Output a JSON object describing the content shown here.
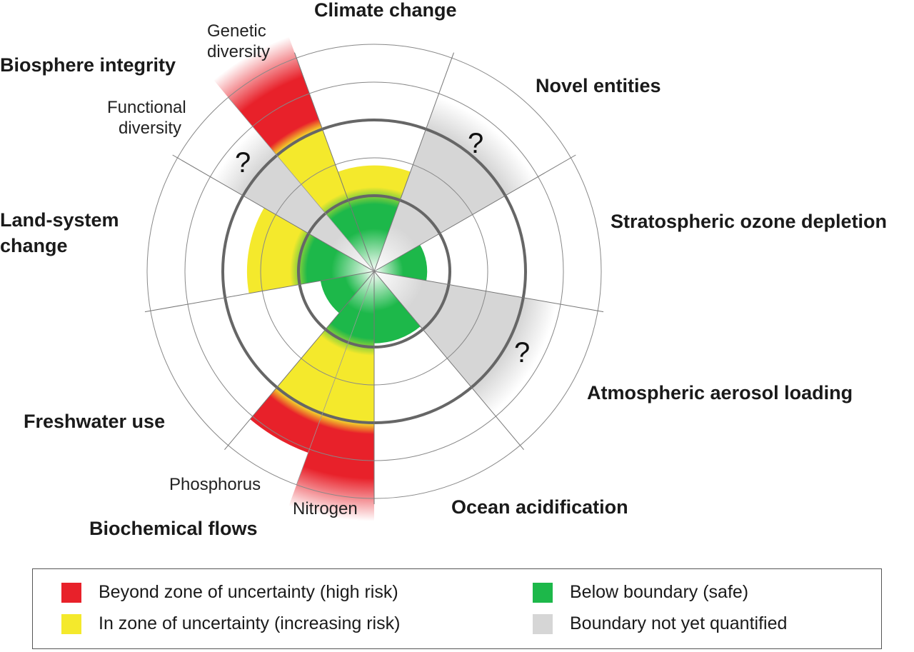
{
  "colors": {
    "high_risk": "#e8212a",
    "increasing_risk": "#f4e92c",
    "safe": "#1db84a",
    "not_quantified": "#d6d6d6"
  },
  "chart_data": {
    "type": "polar-sector",
    "units_note": "",
    "rings": [
      1,
      1.5,
      2,
      2.5,
      3
    ],
    "boundary_ring": 1,
    "uncertainty_upper_ring": 2,
    "sectors": [
      {
        "name": "Climate change",
        "value": 1.4,
        "status": "increasing_risk"
      },
      {
        "name": "Novel entities",
        "value": null,
        "status": "not_quantified",
        "mark": "?"
      },
      {
        "name": "Stratospheric ozone depletion",
        "value": 0.7,
        "status": "safe"
      },
      {
        "name": "Atmospheric aerosol loading",
        "value": null,
        "status": "not_quantified",
        "mark": "?"
      },
      {
        "name": "Ocean acidification",
        "value": 0.95,
        "status": "safe"
      },
      {
        "name": "Biochemical flows",
        "subs": [
          {
            "name": "Nitrogen",
            "value": 3.3,
            "status": "high_risk"
          },
          {
            "name": "Phosphorus",
            "value": 2.55,
            "status": "high_risk"
          }
        ]
      },
      {
        "name": "Freshwater use",
        "value": 0.72,
        "status": "safe"
      },
      {
        "name": "Land-system change",
        "value": 1.68,
        "status": "increasing_risk"
      },
      {
        "name": "Biosphere integrity",
        "subs": [
          {
            "name": "Functional diversity",
            "value": null,
            "status": "not_quantified",
            "mark": "?"
          },
          {
            "name": "Genetic diversity",
            "value": 3.3,
            "status": "high_risk"
          }
        ]
      }
    ]
  },
  "labels": {
    "climate": "Climate change",
    "novel": "Novel entities",
    "ozone": "Stratospheric ozone depletion",
    "aerosol": "Atmospheric aerosol loading",
    "ocean": "Ocean acidification",
    "biochem": "Biochemical flows",
    "nitrogen": "Nitrogen",
    "phosphorus": "Phosphorus",
    "freshwater": "Freshwater use",
    "land1": "Land-system",
    "land2": "change",
    "biosphere": "Biosphere integrity",
    "functional1": "Functional",
    "functional2": "diversity",
    "genetic1": "Genetic",
    "genetic2": "diversity",
    "q": "?"
  },
  "legend": [
    {
      "label": "Beyond zone of uncertainty (high risk)",
      "color": "#e8212a"
    },
    {
      "label": "In zone of uncertainty (increasing risk)",
      "color": "#f4e92c"
    },
    {
      "label": "Below boundary (safe)",
      "color": "#1db84a"
    },
    {
      "label": "Boundary not yet quantified",
      "color": "#d6d6d6"
    }
  ]
}
